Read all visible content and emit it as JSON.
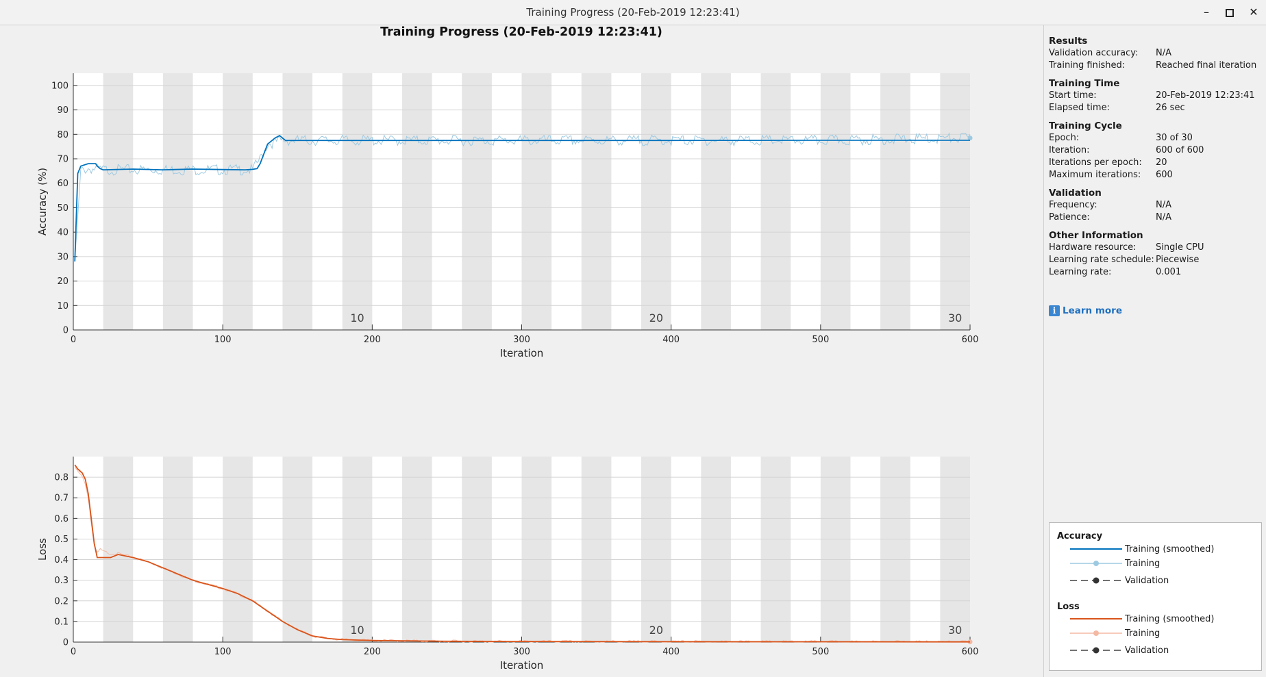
{
  "window": {
    "title": "Training Progress (20-Feb-2019 12:23:41)"
  },
  "figure": {
    "title": "Training Progress (20-Feb-2019 12:23:41)"
  },
  "colors": {
    "accuracy_smoothed": "#0072bd",
    "accuracy_raw": "#9ecae1",
    "loss_smoothed": "#d95319",
    "loss_raw": "#f3b9a3",
    "epoch_band": "#e6e6e6"
  },
  "chart_data": [
    {
      "type": "line",
      "xlabel": "Iteration",
      "ylabel": "Accuracy (%)",
      "xlim": [
        0,
        600
      ],
      "ylim": [
        0,
        105
      ],
      "xticks": [
        0,
        100,
        200,
        300,
        400,
        500,
        600
      ],
      "yticks": [
        0,
        10,
        20,
        30,
        40,
        50,
        60,
        70,
        80,
        90,
        100
      ],
      "epoch_labels": [
        {
          "label": "10",
          "iteration": 190
        },
        {
          "label": "20",
          "iteration": 390
        },
        {
          "label": "30",
          "iteration": 590
        }
      ],
      "series": [
        {
          "name": "Training (smoothed)",
          "x": [
            1,
            3,
            5,
            10,
            15,
            16,
            18,
            20,
            40,
            60,
            80,
            100,
            115,
            120,
            123,
            125,
            130,
            135,
            138,
            142,
            150,
            200,
            300,
            400,
            500,
            600
          ],
          "y": [
            28,
            64,
            67,
            68,
            68,
            67,
            66,
            65.5,
            65.8,
            65.5,
            65.8,
            65.6,
            65.5,
            65.7,
            66,
            68,
            76,
            78.5,
            79.5,
            77.5,
            77.5,
            77.5,
            77.5,
            77.5,
            77.6,
            77.6
          ]
        },
        {
          "name": "Training",
          "x": [
            1,
            5,
            10,
            20,
            40,
            60,
            80,
            100,
            120,
            125,
            130,
            140,
            200,
            300,
            400,
            500,
            600
          ],
          "y": [
            28,
            65,
            66,
            65.5,
            65.5,
            65.5,
            65.5,
            65.5,
            65.5,
            70,
            76,
            77.5,
            77.5,
            77.5,
            77.5,
            77.5,
            78.5
          ]
        }
      ]
    },
    {
      "type": "line",
      "xlabel": "Iteration",
      "ylabel": "Loss",
      "xlim": [
        0,
        600
      ],
      "ylim": [
        0,
        0.9
      ],
      "xticks": [
        0,
        100,
        200,
        300,
        400,
        500,
        600
      ],
      "yticks": [
        0,
        0.1,
        0.2,
        0.3,
        0.4,
        0.5,
        0.6,
        0.7,
        0.8
      ],
      "epoch_labels": [
        {
          "label": "10",
          "iteration": 190
        },
        {
          "label": "20",
          "iteration": 390
        },
        {
          "label": "30",
          "iteration": 590
        }
      ],
      "series": [
        {
          "name": "Training (smoothed)",
          "x": [
            1,
            3,
            6,
            8,
            10,
            12,
            14,
            16,
            20,
            25,
            30,
            40,
            50,
            60,
            70,
            80,
            90,
            100,
            110,
            120,
            130,
            140,
            150,
            160,
            170,
            180,
            200,
            250,
            300,
            400,
            500,
            600
          ],
          "y": [
            0.86,
            0.84,
            0.82,
            0.79,
            0.72,
            0.6,
            0.48,
            0.41,
            0.41,
            0.41,
            0.425,
            0.41,
            0.39,
            0.36,
            0.33,
            0.3,
            0.28,
            0.26,
            0.235,
            0.2,
            0.15,
            0.1,
            0.06,
            0.03,
            0.018,
            0.012,
            0.008,
            0.004,
            0.003,
            0.002,
            0.0015,
            0.001
          ]
        },
        {
          "name": "Training",
          "x": [
            1,
            3,
            6,
            8,
            10,
            12,
            14,
            16,
            18,
            20,
            25,
            30,
            40,
            50,
            60,
            70,
            80,
            90,
            100,
            110,
            120,
            130,
            140,
            150,
            160,
            170,
            180,
            200,
            250,
            300,
            400,
            500,
            600
          ],
          "y": [
            0.85,
            0.83,
            0.8,
            0.77,
            0.7,
            0.58,
            0.47,
            0.43,
            0.45,
            0.44,
            0.43,
            0.43,
            0.41,
            0.39,
            0.36,
            0.33,
            0.3,
            0.28,
            0.26,
            0.235,
            0.2,
            0.15,
            0.1,
            0.06,
            0.03,
            0.018,
            0.012,
            0.008,
            0.004,
            0.003,
            0.002,
            0.0015,
            0.001
          ]
        }
      ]
    }
  ],
  "panel": {
    "results": {
      "heading": "Results",
      "rows": [
        {
          "key": "Validation accuracy:",
          "value": "N/A"
        },
        {
          "key": "Training finished:",
          "value": "Reached final iteration"
        }
      ]
    },
    "time": {
      "heading": "Training Time",
      "rows": [
        {
          "key": "Start time:",
          "value": "20-Feb-2019 12:23:41"
        },
        {
          "key": "Elapsed time:",
          "value": "26 sec"
        }
      ]
    },
    "cycle": {
      "heading": "Training Cycle",
      "rows": [
        {
          "key": "Epoch:",
          "value": "30 of 30"
        },
        {
          "key": "Iteration:",
          "value": "600 of 600"
        },
        {
          "key": "Iterations per epoch:",
          "value": "20"
        },
        {
          "key": "Maximum iterations:",
          "value": "600"
        }
      ]
    },
    "validation": {
      "heading": "Validation",
      "rows": [
        {
          "key": "Frequency:",
          "value": "N/A"
        },
        {
          "key": "Patience:",
          "value": "N/A"
        }
      ]
    },
    "other": {
      "heading": "Other Information",
      "rows": [
        {
          "key": "Hardware resource:",
          "value": "Single CPU"
        },
        {
          "key": "Learning rate schedule:",
          "value": "Piecewise"
        },
        {
          "key": "Learning rate:",
          "value": "0.001"
        }
      ]
    },
    "learn_more": "Learn more",
    "info_icon": "i"
  },
  "legend": {
    "accuracy_heading": "Accuracy",
    "loss_heading": "Loss",
    "items": [
      "Training (smoothed)",
      "Training",
      "Validation"
    ]
  }
}
